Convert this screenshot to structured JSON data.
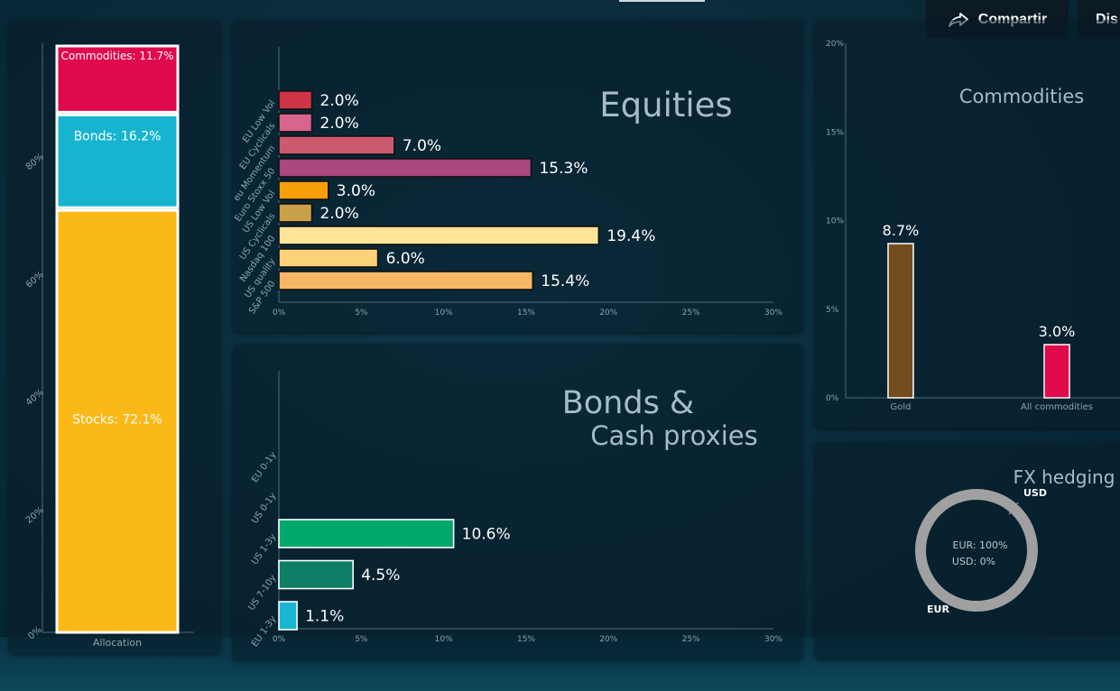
{
  "toolbar": {
    "share_label": "Compartir",
    "dis_label": "Dis"
  },
  "chart_data": [
    {
      "type": "bar",
      "stacked": true,
      "categories": [
        "Allocation"
      ],
      "series": [
        {
          "name": "Stocks",
          "values": [
            72.1
          ],
          "label": "Stocks: 72.1%",
          "color": "#fbb917"
        },
        {
          "name": "Bonds",
          "values": [
            16.2
          ],
          "label": "Bonds: 16.2%",
          "color": "#17b4d0"
        },
        {
          "name": "Commodities",
          "values": [
            11.7
          ],
          "label": "Commodities: 11.7%",
          "color": "#e0094b"
        }
      ],
      "ylim": [
        0,
        100
      ],
      "yticks": [
        "0%",
        "20%",
        "40%",
        "60%",
        "80%"
      ],
      "grid": false
    },
    {
      "type": "bar",
      "orientation": "horizontal",
      "title": "Equities",
      "categories": [
        "EU Low Vol",
        "EU Cyclicals",
        "eu Momentum",
        "Euro Stoxx 50",
        "US Low Vol",
        "US Cyclicals",
        "Nasdaq 100",
        "US quality",
        "S&P 500"
      ],
      "values": [
        2.0,
        2.0,
        7.0,
        15.3,
        3.0,
        2.0,
        19.4,
        6.0,
        15.4
      ],
      "value_labels": [
        "2.0%",
        "2.0%",
        "7.0%",
        "15.3%",
        "3.0%",
        "2.0%",
        "19.4%",
        "6.0%",
        "15.4%"
      ],
      "colors": [
        "#cf3345",
        "#d9648c",
        "#cc5a6e",
        "#a9477e",
        "#f7a00a",
        "#caa04a",
        "#ffe49a",
        "#fcd27a",
        "#f6b866"
      ],
      "xlim": [
        0,
        30
      ],
      "xticks": [
        "0%",
        "5%",
        "10%",
        "15%",
        "20%",
        "25%",
        "30%"
      ]
    },
    {
      "type": "bar",
      "orientation": "horizontal",
      "title": "Bonds &",
      "subtitle": "Cash proxies",
      "categories": [
        "EU 0-1y",
        "US 0-1y",
        "US 1-3y",
        "US 7-10y",
        "EU 1-3y"
      ],
      "values": [
        0,
        0,
        10.6,
        4.5,
        1.1
      ],
      "value_labels": [
        "",
        "",
        "10.6%",
        "4.5%",
        "1.1%"
      ],
      "colors": [
        "#00a86b",
        "#00a86b",
        "#00a86b",
        "#0e7e66",
        "#19b7d4"
      ],
      "xlim": [
        0,
        30
      ],
      "xticks": [
        "0%",
        "5%",
        "10%",
        "15%",
        "20%",
        "25%",
        "30%"
      ]
    },
    {
      "type": "bar",
      "title": "Commodities",
      "categories": [
        "Gold",
        "All commodities"
      ],
      "values": [
        8.7,
        3.0
      ],
      "value_labels": [
        "8.7%",
        "3.0%"
      ],
      "colors": [
        "#744d1e",
        "#e0094b"
      ],
      "ylim": [
        0,
        20
      ],
      "yticks": [
        "0%",
        "5%",
        "10%",
        "15%",
        "20%"
      ]
    },
    {
      "type": "pie",
      "title": "FX hedging",
      "slices": [
        {
          "name": "EUR",
          "value": 100,
          "label": "EUR: 100%"
        },
        {
          "name": "USD",
          "value": 0,
          "label": "USD: 0%"
        }
      ],
      "ring_color": "#a0a0a0"
    }
  ]
}
